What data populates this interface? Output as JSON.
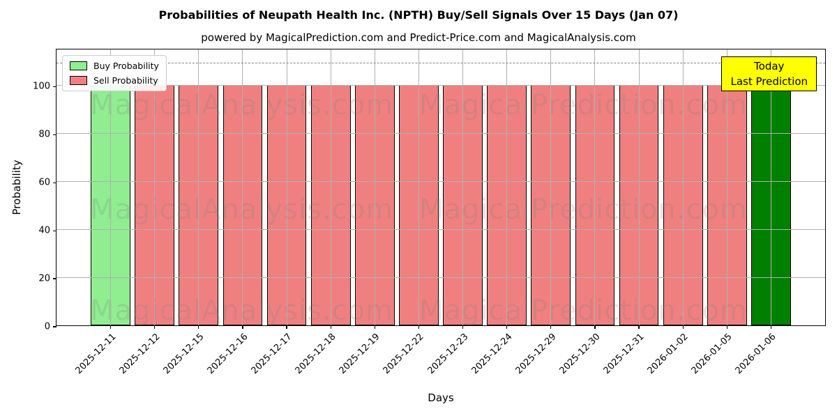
{
  "header": {
    "title": "Probabilities of Neupath Health Inc. (NPTH) Buy/Sell Signals Over 15 Days (Jan 07)",
    "subtitle": "powered by MagicalPrediction.com and Predict-Price.com and MagicalAnalysis.com"
  },
  "chart_data": {
    "type": "bar",
    "title": "Probabilities of Neupath Health Inc. (NPTH) Buy/Sell Signals Over 15 Days (Jan 07)",
    "subtitle": "powered by MagicalPrediction.com and Predict-Price.com and MagicalAnalysis.com",
    "xlabel": "Days",
    "ylabel": "Probability",
    "ylim": [
      0,
      115.5
    ],
    "yticks": [
      0,
      20,
      40,
      60,
      80,
      100
    ],
    "grid": true,
    "legend_position": "upper left",
    "threshold_line": {
      "y": 110,
      "style": "dashed",
      "color": "#808080"
    },
    "categories": [
      "2025-12-11",
      "2025-12-12",
      "2025-12-15",
      "2025-12-16",
      "2025-12-17",
      "2025-12-18",
      "2025-12-19",
      "2025-12-22",
      "2025-12-23",
      "2025-12-24",
      "2025-12-29",
      "2025-12-30",
      "2025-12-31",
      "2026-01-02",
      "2026-01-05",
      "2026-01-06"
    ],
    "bars": [
      {
        "date": "2025-12-11",
        "value": 100,
        "kind": "buy"
      },
      {
        "date": "2025-12-12",
        "value": 100,
        "kind": "sell"
      },
      {
        "date": "2025-12-15",
        "value": 100,
        "kind": "sell"
      },
      {
        "date": "2025-12-16",
        "value": 100,
        "kind": "sell"
      },
      {
        "date": "2025-12-17",
        "value": 100,
        "kind": "sell"
      },
      {
        "date": "2025-12-18",
        "value": 100,
        "kind": "sell"
      },
      {
        "date": "2025-12-19",
        "value": 100,
        "kind": "sell"
      },
      {
        "date": "2025-12-22",
        "value": 100,
        "kind": "sell"
      },
      {
        "date": "2025-12-23",
        "value": 100,
        "kind": "sell"
      },
      {
        "date": "2025-12-24",
        "value": 100,
        "kind": "sell"
      },
      {
        "date": "2025-12-29",
        "value": 100,
        "kind": "sell"
      },
      {
        "date": "2025-12-30",
        "value": 100,
        "kind": "sell"
      },
      {
        "date": "2025-12-31",
        "value": 100,
        "kind": "sell"
      },
      {
        "date": "2026-01-02",
        "value": 100,
        "kind": "sell"
      },
      {
        "date": "2026-01-05",
        "value": 100,
        "kind": "sell"
      },
      {
        "date": "2026-01-06",
        "value": 100,
        "kind": "today"
      }
    ],
    "series": [
      {
        "name": "Buy Probability",
        "color": "#90EE90",
        "values": [
          100,
          0,
          0,
          0,
          0,
          0,
          0,
          0,
          0,
          0,
          0,
          0,
          0,
          0,
          0,
          0
        ]
      },
      {
        "name": "Sell Probability",
        "color": "#F08080",
        "values": [
          0,
          100,
          100,
          100,
          100,
          100,
          100,
          100,
          100,
          100,
          100,
          100,
          100,
          100,
          100,
          0
        ]
      },
      {
        "name": "Today Last Prediction",
        "color": "#008000",
        "values": [
          0,
          0,
          0,
          0,
          0,
          0,
          0,
          0,
          0,
          0,
          0,
          0,
          0,
          0,
          0,
          100
        ]
      }
    ],
    "colors": {
      "buy": "#90EE90",
      "sell": "#F08080",
      "today": "#008000"
    },
    "legend": [
      {
        "label": "Buy Probability",
        "color": "#90EE90"
      },
      {
        "label": "Sell Probability",
        "color": "#F08080"
      }
    ]
  },
  "annotation": {
    "line1": "Today",
    "line2": "Last Prediction",
    "bg_color": "#FFFF00",
    "border_color": "#000000"
  },
  "watermarks": {
    "left_text": "MagicalAnalysis.com",
    "right_text": "MagicalPrediction.com",
    "color": "#808080",
    "opacity": 0.22
  },
  "axis_colors": {
    "grid": "#b0b0b0",
    "spine": "#000000"
  }
}
